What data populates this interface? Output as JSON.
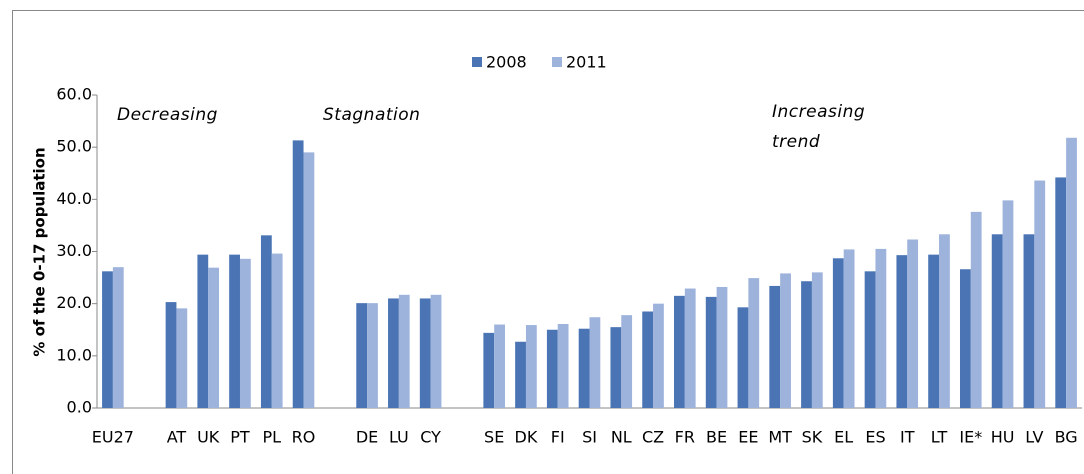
{
  "chart_data": {
    "type": "bar",
    "y_label": "% of the 0-17 population",
    "annotations": [
      "Decreasing",
      "Stagnation",
      "Increasing trend"
    ],
    "categories": [
      "EU27",
      null,
      "AT",
      "UK",
      "PT",
      "PL",
      "RO",
      null,
      "DE",
      "LU",
      "CY",
      null,
      "SE",
      "DK",
      "FI",
      "SI",
      "NL",
      "CZ",
      "FR",
      "BE",
      "EE",
      "MT",
      "SK",
      "EL",
      "ES",
      "IT",
      "LT",
      "IE*",
      "HU",
      "LV",
      "BG"
    ],
    "series": [
      {
        "name": "2008",
        "color": "#4a74b4",
        "values": [
          26.2,
          null,
          20.3,
          29.4,
          29.4,
          33.1,
          51.3,
          null,
          20.1,
          21.0,
          21.0,
          null,
          14.4,
          12.7,
          15.0,
          15.2,
          15.5,
          18.5,
          21.5,
          21.3,
          19.3,
          23.4,
          24.3,
          28.7,
          26.2,
          29.3,
          29.4,
          26.6,
          33.3,
          33.3,
          44.2
        ]
      },
      {
        "name": "2011",
        "color": "#9db3dc",
        "values": [
          27.0,
          null,
          19.1,
          26.9,
          28.6,
          29.6,
          49.0,
          null,
          20.1,
          21.7,
          21.7,
          null,
          16.0,
          15.9,
          16.1,
          17.4,
          17.8,
          20.0,
          22.9,
          23.2,
          24.9,
          25.8,
          26.0,
          30.4,
          30.5,
          32.3,
          33.3,
          37.6,
          39.8,
          43.6,
          51.8
        ]
      }
    ],
    "ylim": [
      0,
      60
    ],
    "yticks": [
      {
        "value": 0,
        "label": "0.0"
      },
      {
        "value": 10,
        "label": "10.0"
      },
      {
        "value": 20,
        "label": "20.0"
      },
      {
        "value": 30,
        "label": "30.0"
      },
      {
        "value": 40,
        "label": "40.0"
      },
      {
        "value": 50,
        "label": "50.0"
      },
      {
        "value": 60,
        "label": "60.0"
      }
    ]
  }
}
